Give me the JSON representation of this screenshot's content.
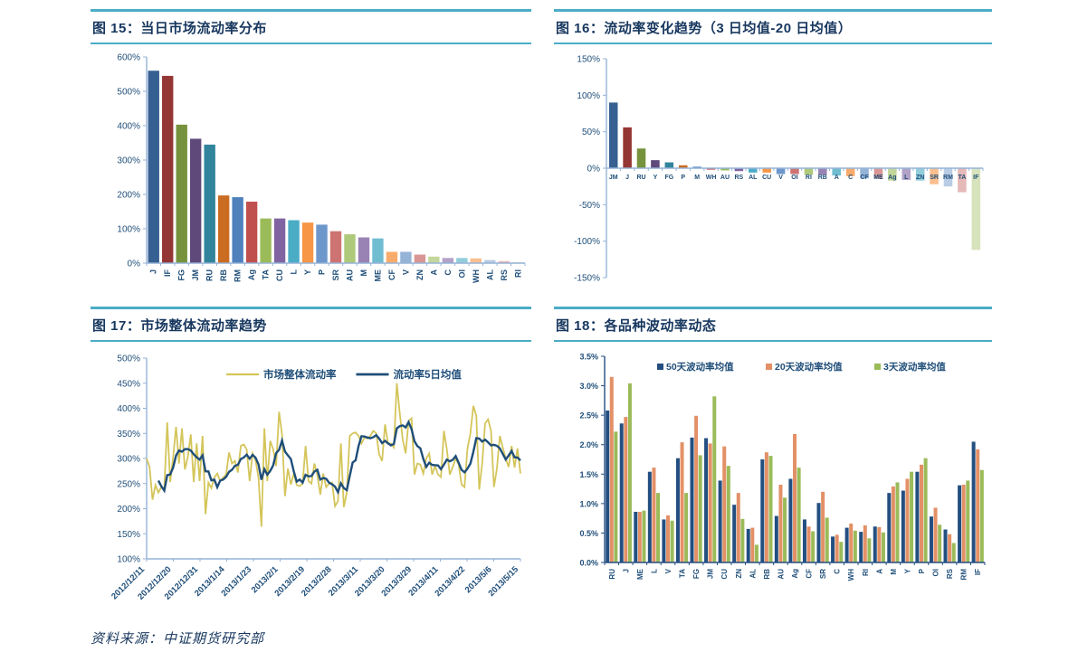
{
  "page": {
    "source_note": "资料来源：中证期货研究部"
  },
  "figures": {
    "fig15": {
      "title": "图 15：当日市场流动率分布"
    },
    "fig16": {
      "title": "图 16：流动率变化趋势（3 日均值-20 日均值）"
    },
    "fig17": {
      "title": "图 17：市场整体流动率趋势"
    },
    "fig18": {
      "title": "图 18：各品种波动率动态"
    }
  },
  "palette_cycle": [
    "#376092",
    "#943634",
    "#76923C",
    "#5F497A",
    "#31849B",
    "#CA6C22",
    "#4F81BD",
    "#C0504D",
    "#9BBB59",
    "#8064A2",
    "#4BACC6",
    "#F79646",
    "#6D96CB",
    "#CD7371",
    "#AFC97A",
    "#9983B5",
    "#70BDD1",
    "#F9AB6B",
    "#95B3D7",
    "#D99694",
    "#C3D69B",
    "#B2A2C7",
    "#92CDDC",
    "#FABF8F",
    "#B8CCE4",
    "#E5B9B7",
    "#D7E3BC"
  ],
  "chart_data": [
    {
      "id": "chart15",
      "type": "bar",
      "title": "图 15：当日市场流动率分布",
      "categories": [
        "J",
        "IF",
        "FG",
        "JM",
        "RU",
        "RB",
        "RM",
        "Ag",
        "TA",
        "CU",
        "L",
        "Y",
        "P",
        "SR",
        "AU",
        "M",
        "ME",
        "CF",
        "V",
        "ZN",
        "A",
        "C",
        "OI",
        "WH",
        "AL",
        "RS",
        "RI"
      ],
      "values": [
        560,
        545,
        403,
        362,
        345,
        197,
        192,
        179,
        130,
        130,
        125,
        118,
        112,
        93,
        84,
        75,
        72,
        33,
        33,
        25,
        19,
        15,
        15,
        14,
        9,
        6,
        3
      ],
      "ylabel": "",
      "xlabel": "",
      "ylim": [
        0,
        600
      ],
      "ytick_step": 100,
      "ytick_unit": "%",
      "grid": false,
      "axis_color": "#95B3D7",
      "label_color": "#1F4E79",
      "x_labels_rotated": true
    },
    {
      "id": "chart16",
      "type": "bar",
      "title": "图 16：流动率变化趋势（3 日均值-20 日均值）",
      "categories": [
        "JM",
        "J",
        "RU",
        "Y",
        "FG",
        "P",
        "M",
        "WH",
        "AU",
        "RS",
        "AL",
        "CU",
        "V",
        "OI",
        "RI",
        "RB",
        "A",
        "C",
        "CF",
        "ME",
        "Ag",
        "L",
        "ZN",
        "SR",
        "RM",
        "TA",
        "IF"
      ],
      "values": [
        90,
        56,
        27,
        11,
        8,
        4,
        2,
        -2,
        -3,
        -4,
        -6,
        -6,
        -8,
        -8,
        -9,
        -9,
        -10,
        -11,
        -14,
        -14,
        -17,
        -16,
        -17,
        -22,
        -25,
        -33,
        -112
      ],
      "ylim": [
        -150,
        150
      ],
      "ytick_step": 50,
      "ytick_unit": "%",
      "grid": false,
      "axis_color": "#95B3D7",
      "label_color": "#1F4E79",
      "x_labels_rotated": false
    },
    {
      "id": "chart17",
      "type": "line",
      "title": "图 17：市场整体流动率趋势",
      "x_tick_labels": [
        "2012/12/11",
        "2012/12/20",
        "2012/12/31",
        "2013/1/14",
        "2013/1/23",
        "2013/2/1",
        "2013/2/19",
        "2013/2/28",
        "2013/3/11",
        "2013/3/20",
        "2013/3/29",
        "2013/4/11",
        "2013/4/22",
        "2013/5/6",
        "2013/5/15"
      ],
      "ylim": [
        100,
        500
      ],
      "ytick_step": 50,
      "ytick_unit": "%",
      "grid": false,
      "axis_color": "#95B3D7",
      "label_color": "#1F4E79",
      "legend_position": "top",
      "series": [
        {
          "name": "市场整体流动率",
          "color": "#D4C55A",
          "values": [
            300,
            283,
            218,
            247,
            232,
            243,
            240,
            372,
            253,
            302,
            363,
            290,
            360,
            278,
            303,
            348,
            253,
            330,
            255,
            345,
            189,
            252,
            241,
            262,
            270,
            255,
            262,
            268,
            312,
            290,
            295,
            272,
            325,
            328,
            318,
            255,
            310,
            297,
            262,
            164,
            360,
            255,
            335,
            318,
            285,
            393,
            348,
            225,
            280,
            248,
            270,
            247,
            245,
            250,
            325,
            255,
            250,
            290,
            267,
            228,
            270,
            243,
            250,
            252,
            205,
            215,
            330,
            203,
            232,
            345,
            350,
            352,
            345,
            330,
            342,
            340,
            345,
            355,
            350,
            308,
            295,
            368,
            330,
            330,
            322,
            450,
            390,
            338,
            310,
            375,
            380,
            268,
            290,
            288,
            270,
            300,
            310,
            268,
            285,
            268,
            263,
            355,
            318,
            268,
            283,
            300,
            288,
            248,
            243,
            320,
            350,
            405,
            385,
            238,
            290,
            370,
            378,
            355,
            243,
            280,
            345,
            322,
            300,
            283,
            325,
            282,
            320,
            270
          ]
        },
        {
          "name": "流动率5日均值",
          "color": "#1F4E79",
          "derived": "moving_average_5_of_series_0"
        }
      ]
    },
    {
      "id": "chart18",
      "type": "bar",
      "subtype": "grouped",
      "title": "图 18：各品种波动率动态",
      "categories": [
        "RU",
        "J",
        "ME",
        "L",
        "V",
        "TA",
        "FG",
        "JM",
        "CU",
        "ZN",
        "AL",
        "RB",
        "AU",
        "Ag",
        "CF",
        "SR",
        "C",
        "WH",
        "RI",
        "A",
        "M",
        "Y",
        "P",
        "OI",
        "RS",
        "RM",
        "IF"
      ],
      "series": [
        {
          "name": "50天波动率均值",
          "color": "#234F80",
          "values": [
            2.58,
            2.36,
            0.86,
            1.54,
            0.73,
            1.77,
            2.12,
            2.11,
            1.39,
            0.98,
            0.57,
            1.75,
            0.79,
            1.42,
            0.73,
            1.01,
            0.44,
            0.59,
            0.52,
            0.61,
            1.18,
            1.22,
            1.54,
            0.78,
            0.56,
            1.31,
            2.05
          ]
        },
        {
          "name": "20天波动率均值",
          "color": "#E39067",
          "values": [
            3.15,
            2.47,
            0.86,
            1.61,
            0.8,
            2.04,
            2.49,
            2.02,
            1.97,
            1.18,
            0.59,
            1.87,
            1.32,
            2.18,
            0.61,
            1.2,
            0.47,
            0.66,
            0.63,
            0.6,
            1.29,
            1.42,
            1.66,
            0.93,
            0.48,
            1.32,
            1.92
          ]
        },
        {
          "name": "3天波动率均值",
          "color": "#9BBB59",
          "values": [
            2.22,
            3.04,
            0.88,
            1.18,
            0.71,
            1.18,
            1.82,
            2.82,
            1.64,
            0.74,
            0.3,
            1.81,
            1.1,
            1.61,
            0.53,
            0.76,
            0.35,
            0.54,
            0.41,
            0.51,
            1.36,
            1.54,
            1.77,
            0.64,
            0.33,
            1.39,
            1.57
          ]
        }
      ],
      "ylim": [
        0,
        3.5
      ],
      "ytick_step": 0.5,
      "ytick_unit": "%",
      "ytick_decimals": 1,
      "grid": false,
      "axis_color": "#244E82",
      "label_color": "#1F4E79",
      "legend_position": "top",
      "x_labels_rotated": true
    }
  ]
}
